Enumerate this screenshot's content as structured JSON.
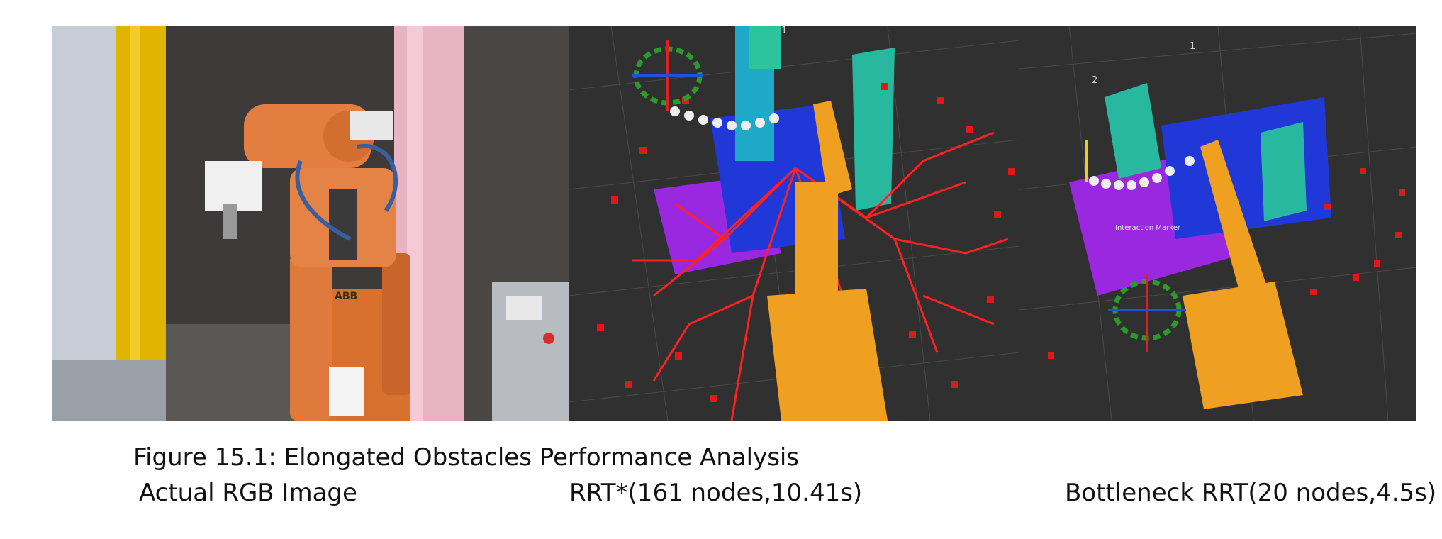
{
  "figure": {
    "caption": "Figure 15.1:  Elongated Obstacles Performance Analysis"
  },
  "panels": [
    {
      "label": "Actual RGB Image",
      "robot_text": "ABB"
    },
    {
      "label": "RRT*(161 nodes,10.41s)",
      "grid_marks": [
        "1"
      ]
    },
    {
      "label": "Bottleneck RRT(20 nodes,4.5s)",
      "grid_marks": [
        "1",
        "2"
      ],
      "marker_text": "Interaction  Marker"
    }
  ],
  "colors": {
    "robot_orange": "#e07a3c",
    "sim_robot": "#f0a020",
    "obstacle_blue": "#2038d8",
    "obstacle_teal": "#28b8a0",
    "obstacle_purple": "#9a28e0",
    "tree_red": "#ff2020",
    "background_dark": "#303030"
  }
}
